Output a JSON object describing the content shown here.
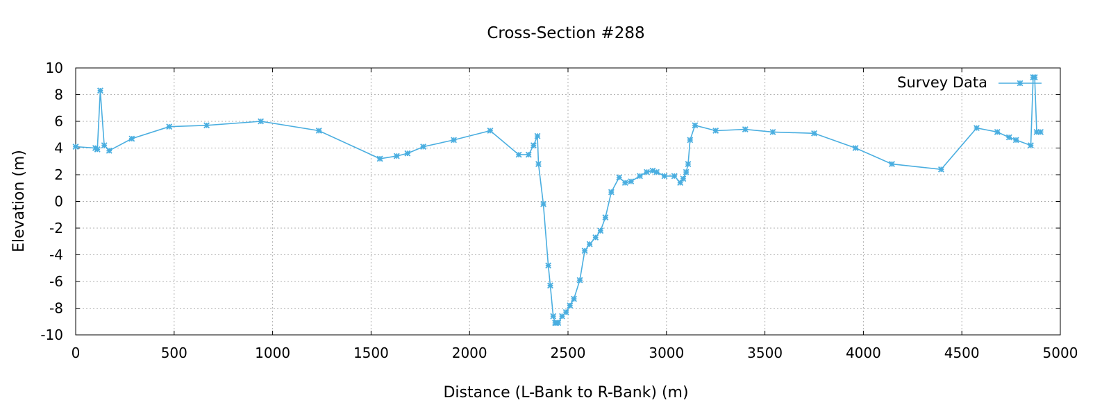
{
  "chart_data": {
    "type": "line",
    "title": "Cross-Section #288",
    "xlabel": "Distance (L-Bank to R-Bank) (m)",
    "ylabel": "Elevation (m)",
    "xlim": [
      0,
      5000
    ],
    "ylim": [
      -10,
      10
    ],
    "xticks": [
      0,
      500,
      1000,
      1500,
      2000,
      2500,
      3000,
      3500,
      4000,
      4500,
      5000
    ],
    "yticks": [
      -10,
      -8,
      -6,
      -4,
      -2,
      0,
      2,
      4,
      6,
      8,
      10
    ],
    "grid": true,
    "legend_position": "top-right",
    "series_color": "#4aaee0",
    "series": [
      {
        "name": "Survey Data",
        "x": [
          0,
          100,
          110,
          125,
          145,
          170,
          285,
          475,
          665,
          940,
          1235,
          1545,
          1630,
          1685,
          1765,
          1920,
          2105,
          2250,
          2300,
          2325,
          2345,
          2350,
          2375,
          2400,
          2410,
          2425,
          2435,
          2440,
          2450,
          2470,
          2490,
          2510,
          2530,
          2560,
          2585,
          2610,
          2640,
          2665,
          2690,
          2720,
          2760,
          2790,
          2820,
          2865,
          2900,
          2930,
          2950,
          2990,
          3040,
          3070,
          3085,
          3100,
          3110,
          3120,
          3145,
          3250,
          3400,
          3540,
          3750,
          3960,
          4145,
          4395,
          4575,
          4680,
          4740,
          4775,
          4850,
          4862,
          4870,
          4880,
          4900
        ],
        "y": [
          4.1,
          4.0,
          3.9,
          8.3,
          4.2,
          3.8,
          4.7,
          5.6,
          5.7,
          6.0,
          5.3,
          3.2,
          3.4,
          3.6,
          4.1,
          4.6,
          5.3,
          3.5,
          3.5,
          4.2,
          4.9,
          2.8,
          -0.2,
          -4.8,
          -6.3,
          -8.6,
          -9.1,
          -9.1,
          -9.1,
          -8.6,
          -8.3,
          -7.8,
          -7.3,
          -5.9,
          -3.7,
          -3.2,
          -2.7,
          -2.2,
          -1.2,
          0.7,
          1.8,
          1.4,
          1.5,
          1.9,
          2.2,
          2.3,
          2.2,
          1.9,
          1.9,
          1.4,
          1.7,
          2.2,
          2.8,
          4.6,
          5.7,
          5.3,
          5.4,
          5.2,
          5.1,
          4.0,
          2.8,
          2.4,
          5.5,
          5.2,
          4.8,
          4.6,
          4.2,
          9.3,
          9.3,
          5.2,
          5.2
        ]
      }
    ]
  }
}
